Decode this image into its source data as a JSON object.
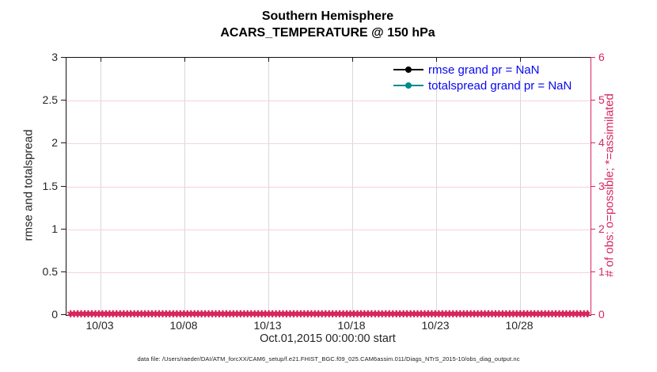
{
  "title": {
    "line1": "Southern Hemisphere",
    "line2": "ACARS_TEMPERATURE @ 150 hPa"
  },
  "left_axis": {
    "label": "rmse and totalspread",
    "ticks": [
      "3",
      "2.5",
      "2",
      "1.5",
      "1",
      "0.5",
      "0"
    ]
  },
  "right_axis": {
    "label": "# of obs: o=possible; *=assimilated",
    "ticks": [
      "6",
      "5",
      "4",
      "3",
      "2",
      "1",
      "0"
    ],
    "color": "#d6275d"
  },
  "x_axis": {
    "ticks": [
      "10/03",
      "10/08",
      "10/13",
      "10/18",
      "10/23",
      "10/28"
    ],
    "label": "Oct.01,2015 00:00:00 start"
  },
  "legend": {
    "text_color": "#0808f0",
    "entries": [
      {
        "label": "rmse grand pr = NaN",
        "color": "#000000"
      },
      {
        "label": "totalspread grand pr = NaN",
        "color": "#008b8b"
      }
    ]
  },
  "obs_band": {
    "glyph": "✱",
    "color": "#d6275d",
    "meaning": "assimilated obs markers plotted at count 0 for every time step"
  },
  "footer": {
    "text": "data file: /Users/raeder/DAI/ATM_forcXX/CAM6_setup/f.e21.FHIST_BGC.f09_025.CAM6assim.011/Diags_NTrS_2015-10/obs_diag_output.nc"
  },
  "colors": {
    "accent_crimson": "#d6275d",
    "grid_vertical": "#d8d8d8",
    "grid_horizontal_pink": "#f6d3dc",
    "axis_text": "#262626",
    "teal_series": "#008b8b",
    "legend_blue": "#0808f0"
  },
  "chart_data": {
    "type": "line",
    "title": "Southern Hemisphere",
    "subtitle": "ACARS_TEMPERATURE @ 150 hPa",
    "xlabel": "Oct.01,2015 00:00:00 start",
    "ylabel_left": "rmse and totalspread",
    "ylabel_right": "# of obs: o=possible; *=assimilated",
    "x_tick_labels": [
      "10/03",
      "10/08",
      "10/13",
      "10/18",
      "10/23",
      "10/28"
    ],
    "x_range": [
      "Oct 01 2015",
      "Nov 01 2015"
    ],
    "ylim_left": [
      0,
      3
    ],
    "ylim_right": [
      0,
      6
    ],
    "grid": true,
    "legend_position": "top-right-inside",
    "series": [
      {
        "name": "rmse grand pr = NaN",
        "axis": "left",
        "color": "#000000",
        "marker": "filled-circle",
        "values": "NaN — no curve drawn"
      },
      {
        "name": "totalspread grand pr = NaN",
        "axis": "left",
        "color": "#008b8b",
        "marker": "filled-circle",
        "values": "NaN — no curve drawn"
      },
      {
        "name": "assimilated observation count (*)",
        "axis": "right",
        "color": "#d6275d",
        "marker": "asterisk",
        "values": "0 at every time step from 10/01 to 11/01"
      }
    ]
  }
}
